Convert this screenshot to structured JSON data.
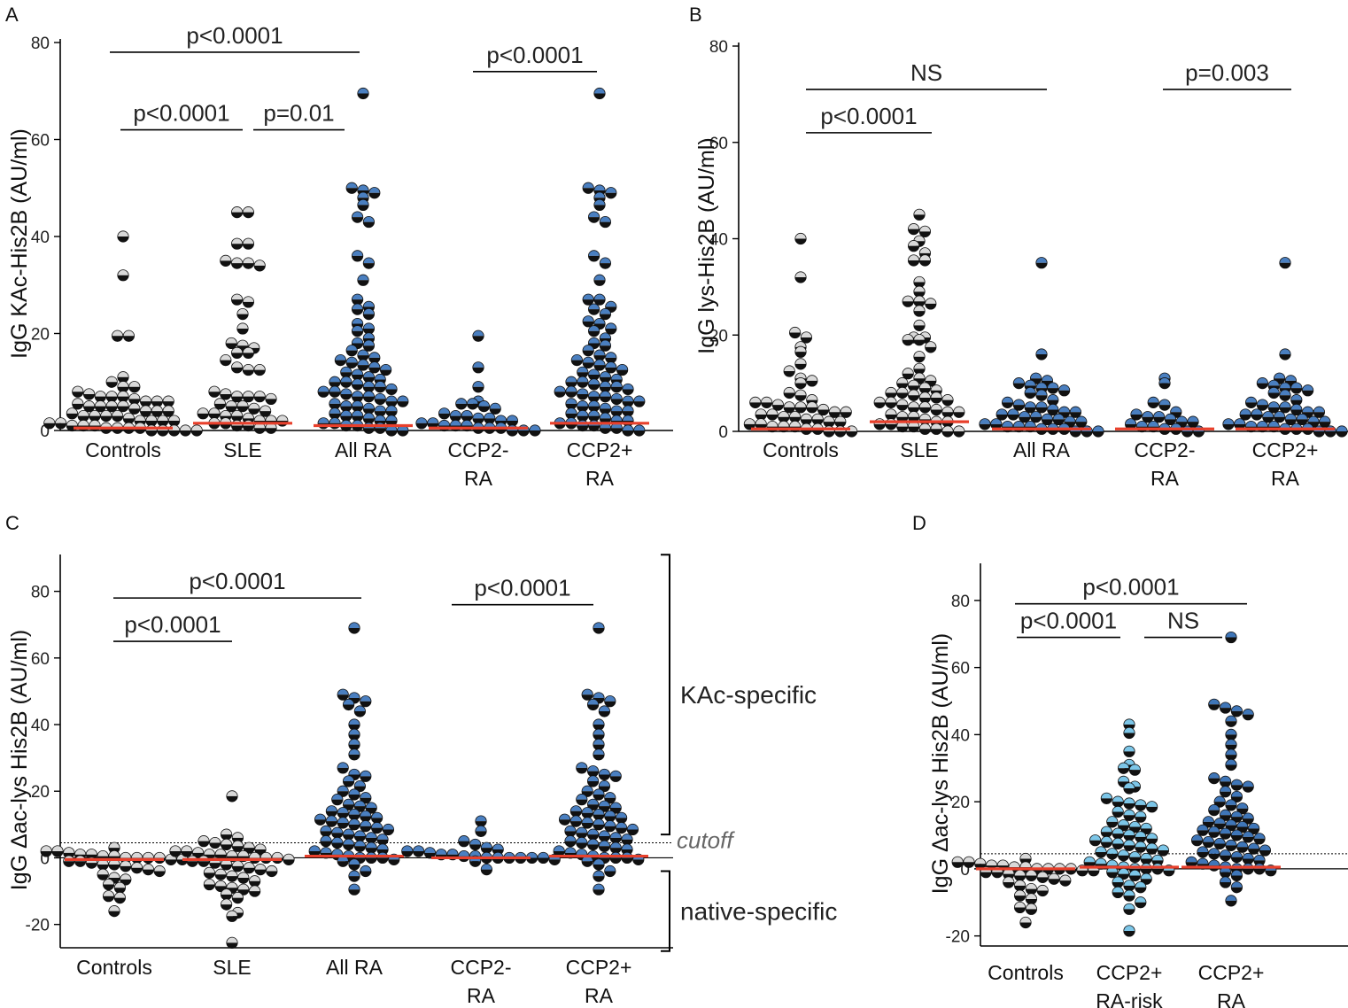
{
  "chart_data": [
    {
      "type": "scatter",
      "subtype": "dot-plot",
      "panel": "A",
      "ylabel": "IgG KAc-His2B (AU/ml)",
      "ylim": [
        0,
        80
      ],
      "yticks": [
        0,
        20,
        40,
        60,
        80
      ],
      "categories": [
        {
          "name": "Controls",
          "lines": [
            "Controls"
          ],
          "style": "gray"
        },
        {
          "name": "SLE",
          "lines": [
            "SLE"
          ],
          "style": "gray"
        },
        {
          "name": "All RA",
          "lines": [
            "All RA"
          ],
          "style": "blue"
        },
        {
          "name": "CCP2- RA",
          "lines": [
            "CCP2-",
            "RA"
          ],
          "style": "blue"
        },
        {
          "name": "CCP2+ RA",
          "lines": [
            "CCP2+",
            "RA"
          ],
          "style": "blue"
        }
      ],
      "medians": [
        0.5,
        1.5,
        1.0,
        0.5,
        1.5
      ],
      "values": [
        [
          40,
          32,
          19.5,
          19.5,
          11,
          10,
          9,
          9,
          8,
          7.5,
          7,
          7,
          7,
          6.5,
          6,
          6,
          6,
          5.5,
          5,
          5,
          5,
          5,
          4.5,
          4,
          4,
          4,
          3.5,
          3,
          3,
          3,
          3,
          2.5,
          2,
          2,
          2,
          2,
          1.5,
          1.5,
          1,
          1,
          1,
          0.5,
          0.5,
          0.5,
          0.5,
          0,
          0,
          0,
          0,
          0
        ],
        [
          45,
          45,
          38.5,
          38.5,
          35,
          34.5,
          34.5,
          34,
          27,
          26.5,
          24,
          21,
          18,
          17.5,
          17,
          16,
          16,
          14.5,
          13,
          12.5,
          12.5,
          8,
          7.5,
          7,
          7,
          7,
          6.5,
          5.5,
          5,
          5,
          4.5,
          4,
          3.5,
          3.5,
          3,
          3,
          2.5,
          2,
          2,
          2,
          1.5,
          1.5,
          1,
          1,
          0.5,
          0.5
        ],
        [
          69.5,
          50,
          49.5,
          49,
          48,
          46.5,
          44,
          43,
          36,
          34.5,
          31,
          27,
          25.5,
          25,
          24,
          22,
          21,
          20.5,
          19,
          18,
          17.5,
          16.5,
          15.5,
          15,
          14.5,
          14,
          13.5,
          13,
          12.5,
          12,
          11.5,
          11,
          10.5,
          10,
          10,
          9.5,
          9,
          9,
          8.5,
          8,
          8,
          7.5,
          7,
          7,
          6.5,
          6,
          6,
          5.5,
          5,
          5,
          4.5,
          4,
          4,
          3.5,
          3,
          3,
          2.5,
          2,
          2,
          1.5,
          1.5,
          1,
          1,
          0.5,
          0.5,
          0,
          0
        ],
        [
          19.5,
          13,
          9,
          6,
          5.5,
          5.5,
          5,
          4.5,
          3.5,
          3,
          3,
          2.5,
          2.5,
          2,
          2,
          1.5,
          1.5,
          1,
          1,
          1,
          0.5,
          0.5,
          0.5,
          0,
          0,
          0
        ],
        [
          69.5,
          50,
          49.5,
          49,
          48,
          46.5,
          44,
          43,
          36,
          34.5,
          31,
          27,
          27,
          25.5,
          25,
          24,
          22.5,
          22,
          21,
          20.5,
          19,
          18,
          17.5,
          16.5,
          15.5,
          15,
          14.5,
          14,
          13.5,
          13,
          12.5,
          12,
          11.5,
          11,
          10.5,
          10,
          10,
          9.5,
          9,
          9,
          8.5,
          8,
          8,
          7.5,
          7,
          7,
          6.5,
          6,
          6,
          5.5,
          5,
          5,
          4.5,
          4,
          4,
          3.5,
          3,
          3,
          2.5,
          2,
          2,
          1.5,
          1.5,
          1,
          1,
          0.5,
          0.5,
          0,
          0
        ]
      ],
      "comparisons": [
        {
          "from": 0,
          "to": 2,
          "label": "p<0.0001",
          "level": 78
        },
        {
          "from": 0,
          "to": 1,
          "label": "p<0.0001",
          "level": 62
        },
        {
          "from": 1,
          "to": 2,
          "label": "p=0.01",
          "level": 62
        },
        {
          "from": 3,
          "to": 4,
          "label": "p<0.0001",
          "level": 74
        }
      ]
    },
    {
      "type": "scatter",
      "subtype": "dot-plot",
      "panel": "B",
      "ylabel": "IgG lys-His2B (AU/ml)",
      "ylim": [
        0,
        80
      ],
      "yticks": [
        0,
        20,
        40,
        60,
        80
      ],
      "categories": [
        {
          "name": "Controls",
          "lines": [
            "Controls"
          ],
          "style": "gray"
        },
        {
          "name": "SLE",
          "lines": [
            "SLE"
          ],
          "style": "gray"
        },
        {
          "name": "All RA",
          "lines": [
            "All RA"
          ],
          "style": "blue"
        },
        {
          "name": "CCP2- RA",
          "lines": [
            "CCP2-",
            "RA"
          ],
          "style": "blue"
        },
        {
          "name": "CCP2+ RA",
          "lines": [
            "CCP2+",
            "RA"
          ],
          "style": "blue"
        }
      ],
      "medians": [
        0.5,
        2,
        0.5,
        0.5,
        0.5
      ],
      "values": [
        [
          40,
          32,
          20.5,
          19.5,
          17.5,
          16.5,
          14,
          12.5,
          11,
          10.5,
          10,
          8,
          7.5,
          6.5,
          6,
          6,
          5.5,
          5,
          5,
          5,
          4.5,
          4,
          4,
          3.5,
          3.5,
          3,
          3,
          2.5,
          2.5,
          2,
          2,
          1.5,
          1.5,
          1,
          1,
          1,
          0.5,
          0.5,
          0,
          0,
          0
        ],
        [
          45,
          42,
          41.5,
          39.5,
          38.5,
          37,
          35.5,
          35.5,
          31,
          29,
          27,
          27,
          26.5,
          25,
          22,
          19.5,
          19.5,
          19,
          19,
          17.5,
          15.5,
          13,
          12,
          11,
          10.5,
          10,
          9.5,
          9,
          8.5,
          8,
          8,
          7.5,
          7,
          7,
          6.5,
          6,
          6,
          5.5,
          5,
          5,
          4.5,
          4,
          4,
          3.5,
          3,
          3,
          2.5,
          2,
          2,
          1.5,
          1.5,
          1,
          1,
          0.5,
          0.5,
          0,
          0
        ],
        [
          35,
          16,
          11,
          10.5,
          10,
          9.5,
          9,
          9,
          8.5,
          8,
          7.5,
          6.5,
          6,
          5.5,
          5,
          5,
          4.5,
          4,
          4,
          3.5,
          3.5,
          3,
          3,
          2.5,
          2.5,
          2,
          2,
          1.5,
          1.5,
          1,
          1,
          1,
          0.5,
          0.5,
          0.5,
          0,
          0,
          0
        ],
        [
          11,
          10,
          6,
          5.5,
          4,
          3.5,
          3,
          3,
          2.5,
          2,
          2,
          1.5,
          1,
          1,
          0.5,
          0.5,
          0,
          0
        ],
        [
          35,
          16,
          11,
          10.5,
          10,
          9.5,
          9,
          9,
          8.5,
          8,
          7.5,
          6.5,
          6,
          5.5,
          5,
          5,
          4.5,
          4,
          4,
          3.5,
          3.5,
          3,
          3,
          2.5,
          2.5,
          2,
          2,
          1.5,
          1.5,
          1,
          1,
          1,
          0.5,
          0.5,
          0.5,
          0,
          0,
          0
        ]
      ],
      "comparisons": [
        {
          "from": 0,
          "to": 2,
          "label": "NS",
          "level": 71
        },
        {
          "from": 0,
          "to": 1,
          "label": "p<0.0001",
          "level": 62
        },
        {
          "from": 3,
          "to": 4,
          "label": "p=0.003",
          "level": 71
        }
      ]
    },
    {
      "type": "scatter",
      "subtype": "dot-plot",
      "panel": "C",
      "ylabel": "IgG Δac-lys His2B (AU/ml)",
      "ylim": [
        -27,
        90
      ],
      "yticks": [
        -20,
        0,
        20,
        40,
        60,
        80
      ],
      "cutoff": 4.5,
      "cutoff_label": "cutoff",
      "categories": [
        {
          "name": "Controls",
          "lines": [
            "Controls"
          ],
          "style": "gray"
        },
        {
          "name": "SLE",
          "lines": [
            "SLE"
          ],
          "style": "gray"
        },
        {
          "name": "All RA",
          "lines": [
            "All RA"
          ],
          "style": "blue"
        },
        {
          "name": "CCP2- RA",
          "lines": [
            "CCP2-",
            "RA"
          ],
          "style": "blue"
        },
        {
          "name": "CCP2+ RA",
          "lines": [
            "CCP2+",
            "RA"
          ],
          "style": "blue"
        }
      ],
      "medians": [
        -0.5,
        -0.5,
        0.5,
        0,
        0.5
      ],
      "values": [
        [
          3,
          2,
          2,
          1.5,
          1,
          1,
          0.5,
          0.5,
          0,
          0,
          0,
          0,
          -0.5,
          -0.5,
          -1,
          -1,
          -1.5,
          -2,
          -2,
          -2.5,
          -3,
          -3.5,
          -4,
          -5,
          -6,
          -6.5,
          -8,
          -9,
          -11.5,
          -12,
          -16
        ],
        [
          18.5,
          7,
          6,
          5,
          4.5,
          4,
          3.5,
          3,
          2.5,
          2,
          2,
          1.5,
          1,
          1,
          0.5,
          0.5,
          0,
          0,
          0,
          -0.5,
          -1,
          -1,
          -1.5,
          -2,
          -2.5,
          -3,
          -3.5,
          -4,
          -4.5,
          -5,
          -5.5,
          -6,
          -7,
          -8,
          -8.5,
          -9,
          -9.5,
          -10,
          -11,
          -12,
          -14,
          -16.5,
          -17.5,
          -25.5
        ],
        [
          69,
          49,
          48,
          47,
          46,
          44,
          40,
          37,
          34,
          31,
          27,
          25,
          24.5,
          23,
          21.5,
          20,
          19,
          18,
          17.5,
          16,
          15.5,
          15,
          14,
          13.5,
          13,
          12.5,
          12,
          11.5,
          11,
          10.5,
          10,
          9.5,
          9,
          8.5,
          8,
          7.5,
          7,
          6.5,
          6,
          5.5,
          5,
          4.5,
          4,
          3.5,
          3,
          2.5,
          2,
          1.5,
          1,
          0.5,
          0,
          0,
          0,
          -0.5,
          -1,
          -2,
          -4,
          -5.5,
          -9.5
        ],
        [
          11,
          8,
          5,
          4,
          3,
          2.5,
          2,
          2,
          1.5,
          1,
          1,
          0.5,
          0.5,
          0,
          0,
          0,
          0,
          0,
          0,
          -0.5,
          -1,
          -3.5
        ],
        [
          69,
          49,
          48,
          47,
          46,
          44,
          40,
          37,
          34,
          31,
          27,
          26,
          25,
          24.5,
          23,
          21.5,
          20,
          19,
          18,
          17.5,
          16,
          15.5,
          15,
          14,
          13.5,
          13,
          12.5,
          12,
          11.5,
          11,
          10.5,
          10,
          9.5,
          9,
          8.5,
          8,
          7.5,
          7,
          6.5,
          6,
          5.5,
          5,
          4.5,
          4,
          3.5,
          3,
          2.5,
          2,
          1.5,
          1,
          0.5,
          0,
          0,
          0,
          -0.5,
          -1,
          -2,
          -4,
          -5.5,
          -9.5
        ]
      ],
      "comparisons": [
        {
          "from": 0,
          "to": 2,
          "label": "p<0.0001",
          "level": 78
        },
        {
          "from": 0,
          "to": 1,
          "label": "p<0.0001",
          "level": 65
        },
        {
          "from": 3,
          "to": 4,
          "label": "p<0.0001",
          "level": 76
        }
      ],
      "brackets": [
        {
          "label": "KAc-specific",
          "from": 7,
          "to": 91
        },
        {
          "label": "native-specific",
          "from": -28,
          "to": -4
        }
      ]
    },
    {
      "type": "scatter",
      "subtype": "dot-plot",
      "panel": "D",
      "ylabel": "IgG Δac-lys His2B (AU/ml)",
      "ylim": [
        -23,
        90
      ],
      "yticks": [
        -20,
        0,
        20,
        40,
        60,
        80
      ],
      "cutoff": 4.5,
      "categories": [
        {
          "name": "Controls",
          "lines": [
            "Controls"
          ],
          "style": "gray"
        },
        {
          "name": "CCP2+ RA-risk",
          "lines": [
            "CCP2+",
            "RA-risk"
          ],
          "style": "light-blue"
        },
        {
          "name": "CCP2+ RA",
          "lines": [
            "CCP2+",
            "RA"
          ],
          "style": "dark-blue"
        }
      ],
      "medians": [
        0,
        0.5,
        0.5
      ],
      "values": [
        [
          3,
          2,
          2,
          1.5,
          1,
          1,
          0.5,
          0.5,
          0,
          0,
          0,
          0,
          -0.5,
          -0.5,
          -1,
          -1,
          -1.5,
          -2,
          -2,
          -2.5,
          -3,
          -3.5,
          -4,
          -5,
          -6,
          -6.5,
          -8,
          -9,
          -11.5,
          -12,
          -16
        ],
        [
          43,
          40.5,
          35,
          31,
          30,
          29.5,
          26,
          24.5,
          24,
          21,
          20,
          19.5,
          19,
          18.5,
          17,
          16,
          15.5,
          14,
          13,
          12.5,
          12,
          11,
          10.5,
          10,
          9.5,
          9,
          8.5,
          8,
          7.5,
          7,
          6.5,
          6,
          5.5,
          5,
          4.5,
          4,
          3.5,
          3,
          2.5,
          2,
          1.5,
          1,
          0.5,
          0,
          0,
          0,
          -0.5,
          -1,
          -1.5,
          -2,
          -3,
          -4,
          -5,
          -5.5,
          -7,
          -8,
          -10,
          -12,
          -18.5
        ],
        [
          69,
          49,
          48,
          47,
          46,
          44,
          40,
          37,
          34,
          31,
          27,
          26,
          25,
          24.5,
          23,
          21.5,
          20,
          19,
          18,
          17.5,
          16,
          15.5,
          15,
          14,
          13.5,
          13,
          12.5,
          12,
          11.5,
          11,
          10.5,
          10,
          9.5,
          9,
          8.5,
          8,
          7.5,
          7,
          6.5,
          6,
          5.5,
          5,
          4.5,
          4,
          3.5,
          3,
          2.5,
          2,
          1.5,
          1,
          0.5,
          0,
          0,
          0,
          -0.5,
          -1,
          -2,
          -4,
          -5.5,
          -9.5
        ]
      ],
      "comparisons": [
        {
          "from": 0,
          "to": 2,
          "label": "p<0.0001",
          "level": 79
        },
        {
          "from": 0,
          "to": 1,
          "label": "p<0.0001",
          "level": 69
        },
        {
          "from": 1,
          "to": 2,
          "label": "NS",
          "level": 69
        }
      ]
    }
  ],
  "colors": {
    "gray_fill": "#d9d9d9",
    "blue_fill": "#4a7fc0",
    "light_blue_fill": "#7cc6e8",
    "dark_blue_fill": "#3f76b8",
    "dark_half": "#111111",
    "median": "#e8402c"
  }
}
